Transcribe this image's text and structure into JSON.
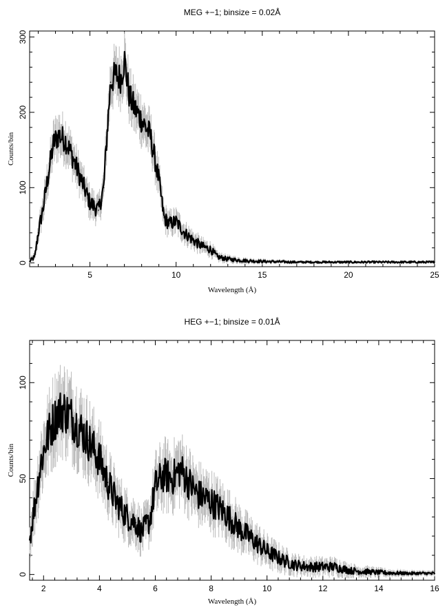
{
  "chart_data": [
    {
      "type": "line",
      "title": "MEG +−1; binsize = 0.02Å",
      "xlabel": "Wavelength (Å)",
      "ylabel": "Counts/bin",
      "xlim": [
        1.5,
        25
      ],
      "ylim": [
        -5,
        308
      ],
      "xticks": [
        "5",
        "10",
        "15",
        "20",
        "25"
      ],
      "yticks": [
        "0",
        "100",
        "200",
        "300"
      ],
      "color": "#000000",
      "error_color": "#bbbbbb",
      "x": [
        1.5,
        1.8,
        2.0,
        2.3,
        2.6,
        2.9,
        3.2,
        3.6,
        4.0,
        4.5,
        5.0,
        5.5,
        5.8,
        6.0,
        6.2,
        6.5,
        6.8,
        7.0,
        7.3,
        7.6,
        8.0,
        8.5,
        9.0,
        9.3,
        9.6,
        10.0,
        10.5,
        11.0,
        11.5,
        12.0,
        12.4,
        13.0,
        14.0,
        15.0,
        17.0,
        20.0,
        25.0
      ],
      "y": [
        2,
        8,
        40,
        75,
        120,
        160,
        170,
        162,
        140,
        110,
        80,
        70,
        100,
        175,
        240,
        250,
        245,
        270,
        220,
        205,
        190,
        170,
        110,
        60,
        52,
        55,
        40,
        30,
        22,
        18,
        8,
        5,
        3,
        2,
        1,
        1,
        1
      ]
    },
    {
      "type": "line",
      "title": "HEG +−1; binsize = 0.01Å",
      "xlabel": "Wavelength (Å)",
      "ylabel": "Counts/bin",
      "xlim": [
        1.5,
        16
      ],
      "ylim": [
        -3,
        122
      ],
      "xticks": [
        "2",
        "4",
        "6",
        "8",
        "10",
        "12",
        "14",
        "16"
      ],
      "yticks": [
        "0",
        "50",
        "100"
      ],
      "color": "#000000",
      "error_color": "#bbbbbb",
      "x": [
        1.5,
        1.7,
        1.9,
        2.1,
        2.3,
        2.5,
        2.7,
        3.0,
        3.3,
        3.6,
        4.0,
        4.3,
        4.6,
        5.0,
        5.3,
        5.5,
        5.8,
        6.0,
        6.3,
        6.6,
        6.9,
        7.2,
        7.5,
        8.0,
        8.5,
        9.0,
        9.5,
        10.0,
        10.5,
        11.0,
        11.5,
        12.0,
        12.4,
        13.0,
        14.0,
        15.0,
        16.0
      ],
      "y": [
        18,
        38,
        58,
        70,
        78,
        84,
        86,
        82,
        76,
        70,
        60,
        48,
        38,
        30,
        27,
        22,
        28,
        46,
        52,
        50,
        55,
        48,
        42,
        38,
        32,
        24,
        18,
        12,
        8,
        5,
        4,
        4,
        4,
        2,
        1,
        0.5,
        0.5
      ]
    }
  ]
}
